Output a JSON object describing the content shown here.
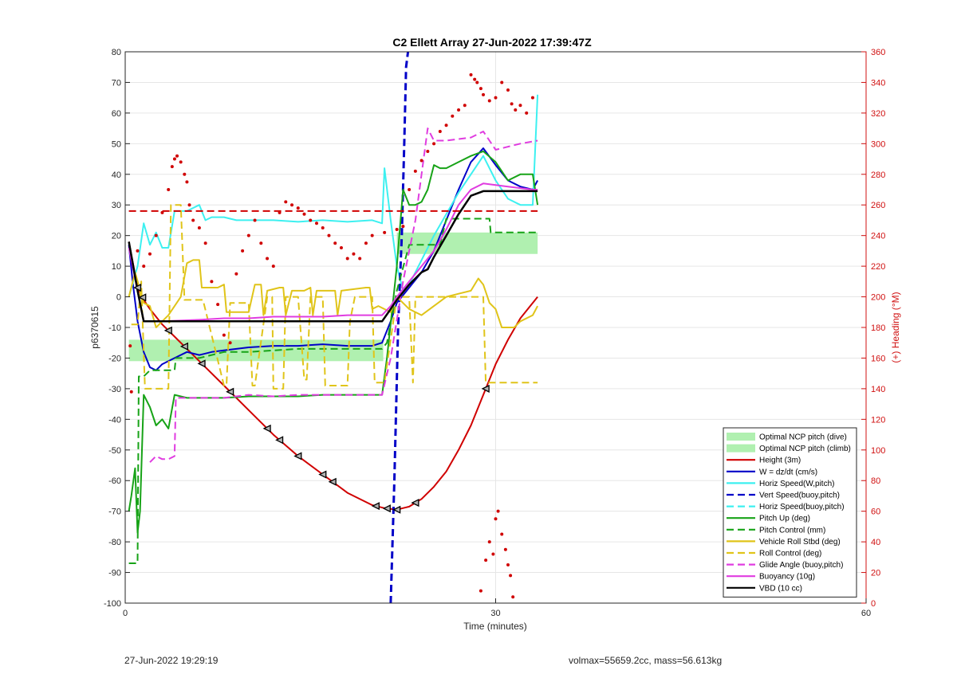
{
  "footer": {
    "left_text": "27-Jun-2022 19:29:19",
    "right_text": "volmax=55659.2cc, mass=56.613kg"
  },
  "colors": {
    "red": "#d00000",
    "blue": "#0000c8",
    "cyan": "#3df0f0",
    "green": "#17a317",
    "yellow": "#e0c419",
    "magenta": "#e03ce0",
    "black": "#000000",
    "light_green": "#b0f0b0",
    "right_axis": "#d01010"
  },
  "chart_data": {
    "type": "line",
    "title": "C2 Ellett Array 27-Jun-2022 17:39:47Z",
    "xlabel": "Time (minutes)",
    "ylabel": "p6370615",
    "ylabel_right": "(+) Heading (°M)",
    "xlim": [
      0,
      60
    ],
    "ylim": [
      -100,
      80
    ],
    "ylim_right": [
      0,
      360
    ],
    "xticks": [
      0,
      30,
      60
    ],
    "yticks": [
      -100,
      -90,
      -80,
      -70,
      -60,
      -50,
      -40,
      -30,
      -20,
      -10,
      0,
      10,
      20,
      30,
      40,
      50,
      60,
      70,
      80
    ],
    "yticks_right": [
      0,
      20,
      40,
      60,
      80,
      100,
      120,
      140,
      160,
      180,
      200,
      220,
      240,
      260,
      280,
      300,
      320,
      340,
      360
    ],
    "grid": true,
    "grid_x": [
      30
    ],
    "legend_position": "bottom-right",
    "legend": [
      {
        "label": "Optimal NCP pitch (dive)",
        "style": "patch",
        "color": "#b0f0b0"
      },
      {
        "label": "Optimal NCP pitch (climb)",
        "style": "patch",
        "color": "#b0f0b0"
      },
      {
        "label": "Height (3m)",
        "style": "solid",
        "color": "#d00000"
      },
      {
        "label": "W = dz/dt (cm/s)",
        "style": "solid",
        "color": "#0000c8"
      },
      {
        "label": "Horiz Speed(W,pitch)",
        "style": "solid",
        "color": "#3df0f0"
      },
      {
        "label": "Vert Speed(buoy,pitch)",
        "style": "dashed",
        "color": "#0000c8"
      },
      {
        "label": "Horiz Speed(buoy,pitch)",
        "style": "dashed",
        "color": "#3df0f0"
      },
      {
        "label": "Pitch Up (deg)",
        "style": "solid",
        "color": "#17a317"
      },
      {
        "label": "Pitch Control (mm)",
        "style": "dashed",
        "color": "#17a317"
      },
      {
        "label": "Vehicle Roll Stbd (deg)",
        "style": "solid",
        "color": "#e0c419"
      },
      {
        "label": "Roll Control (deg)",
        "style": "dashed",
        "color": "#e0c419"
      },
      {
        "label": "Glide Angle (buoy,pitch)",
        "style": "dashed",
        "color": "#e03ce0"
      },
      {
        "label": "Buoyancy (10g)",
        "style": "solid",
        "color": "#e03ce0"
      },
      {
        "label": "VBD (10 cc)",
        "style": "solid",
        "color": "#000000"
      }
    ],
    "patches": [
      {
        "name": "Optimal NCP pitch (dive)",
        "x": [
          0.3,
          20.9
        ],
        "y": [
          -21,
          -14
        ],
        "color": "#b0f0b0"
      },
      {
        "name": "Optimal NCP pitch (climb)",
        "x": [
          22.0,
          33.4
        ],
        "y": [
          14,
          21
        ],
        "color": "#b0f0b0"
      }
    ],
    "series": [
      {
        "name": "Height (3m)",
        "axis": "left",
        "style": "solid",
        "color": "#d00000",
        "width": 2,
        "x": [
          0.3,
          1.0,
          1.5,
          2.0,
          3.0,
          4.0,
          6.0,
          8.0,
          10.0,
          12.0,
          14.0,
          16.0,
          18.0,
          20.0,
          21.0,
          22.0,
          23.0,
          24.0,
          25.0,
          26.0,
          27.0,
          28.0,
          29.0,
          30.0,
          31.0,
          32.0,
          33.0,
          33.4
        ],
        "y": [
          18,
          3,
          -1,
          -4,
          -9,
          -13,
          -21,
          -29,
          -37,
          -45,
          -52,
          -58,
          -64,
          -68,
          -69,
          -69.5,
          -68.5,
          -66,
          -62,
          -57,
          -50,
          -42,
          -32,
          -22,
          -14,
          -7,
          -2,
          0
        ]
      },
      {
        "name": "W = dz/dt (cm/s)",
        "axis": "left",
        "style": "solid",
        "color": "#0000c8",
        "width": 2,
        "x": [
          0.3,
          0.6,
          1.0,
          1.5,
          2.0,
          2.5,
          3.0,
          4.0,
          5.0,
          6.0,
          7.0,
          8.0,
          9.0,
          10.0,
          12.0,
          14.0,
          16.0,
          18.0,
          20.0,
          20.8,
          21.5,
          22.0,
          23.0,
          24.0,
          25.0,
          26.0,
          27.0,
          28.0,
          29.0,
          30.0,
          31.0,
          32.0,
          33.0,
          33.4
        ],
        "y": [
          17,
          5,
          -8,
          -18,
          -23,
          -24,
          -22,
          -20,
          -18,
          -19,
          -18,
          -17.5,
          -17,
          -16.5,
          -16,
          -16,
          -15.5,
          -16,
          -16,
          -15,
          -8,
          -2,
          3,
          8,
          15,
          25,
          35,
          44,
          48.5,
          43,
          38,
          36,
          35,
          38
        ]
      },
      {
        "name": "Horiz Speed(W,pitch)",
        "axis": "left",
        "style": "solid",
        "color": "#3df0f0",
        "width": 2,
        "x": [
          0.3,
          1.0,
          1.5,
          2.0,
          2.5,
          3.0,
          3.5,
          4.0,
          5.0,
          6.0,
          6.5,
          7.0,
          8.0,
          9.0,
          10.0,
          12.0,
          14.0,
          16.0,
          18.0,
          20.0,
          20.8,
          21.0,
          21.5,
          22.0,
          22.5,
          23.0,
          24.0,
          25.0,
          26.0,
          27.0,
          28.0,
          29.0,
          30.0,
          31.0,
          32.0,
          33.0,
          33.4
        ],
        "y": [
          0,
          10,
          24,
          17,
          21,
          16,
          16,
          28,
          28,
          30,
          25,
          26,
          26,
          25,
          25,
          25,
          24.5,
          25,
          24.5,
          25,
          24,
          42,
          25,
          10,
          2,
          4,
          12,
          20,
          27,
          34,
          40,
          46,
          38,
          32,
          30,
          30,
          66
        ]
      },
      {
        "name": "Vert Speed(buoy,pitch)",
        "axis": "left",
        "style": "dashed",
        "color": "#0000c8",
        "width": 3,
        "x": [
          21.5,
          21.8,
          22.1,
          22.4,
          22.6,
          22.75,
          22.9
        ],
        "y": [
          -100,
          -60,
          -10,
          20,
          50,
          75,
          80
        ]
      },
      {
        "name": "Pitch Up (deg)",
        "axis": "left",
        "style": "solid",
        "color": "#17a317",
        "width": 2,
        "x": [
          0.3,
          0.5,
          0.8,
          1.0,
          1.2,
          1.5,
          2.0,
          2.5,
          3.0,
          3.5,
          4.0,
          5.0,
          6.0,
          8.0,
          10.0,
          12.0,
          14.0,
          16.0,
          18.0,
          20.0,
          20.8,
          21.2,
          22.0,
          22.5,
          23.0,
          23.5,
          24.0,
          24.5,
          25.0,
          25.5,
          26.0,
          27.0,
          28.0,
          29.0,
          30.0,
          31.0,
          32.0,
          33.0,
          33.4
        ],
        "y": [
          -70,
          -65,
          -56,
          -77,
          -70,
          -32,
          -36,
          -42,
          -40,
          -43,
          -32,
          -33,
          -33,
          -33,
          -32.5,
          -32.5,
          -32.5,
          -32,
          -32,
          -32,
          -32,
          -20,
          10,
          35,
          30,
          30,
          31,
          35,
          43,
          42,
          42,
          44,
          46,
          47.5,
          44,
          38,
          40,
          40,
          30
        ]
      },
      {
        "name": "Pitch Control (mm)",
        "axis": "left",
        "style": "dashed",
        "color": "#17a317",
        "width": 2,
        "x": [
          0.3,
          1.0,
          1.1,
          1.5,
          2.0,
          4.0,
          4.1,
          6.0,
          8.0,
          10.0,
          12.0,
          14.0,
          16.0,
          18.0,
          20.0,
          20.8,
          21.2,
          22.0,
          23.0,
          24.5,
          25.5,
          26.0,
          27.5,
          29.5,
          29.6,
          33.4
        ],
        "y": [
          -87,
          -87,
          -26,
          -26,
          -24,
          -24,
          -20,
          -20,
          -18,
          -18,
          -17.5,
          -17,
          -17,
          -17,
          -17,
          -17,
          -15,
          2,
          17,
          17,
          17,
          25.5,
          25.5,
          25.5,
          21,
          21
        ]
      },
      {
        "name": "Vehicle Roll Stbd (deg)",
        "axis": "left",
        "style": "solid",
        "color": "#e0c419",
        "width": 2,
        "x": [
          0.3,
          0.8,
          1.5,
          2.0,
          2.5,
          3.0,
          3.5,
          4.5,
          5.0,
          5.5,
          6.0,
          6.2,
          7.5,
          8.0,
          8.2,
          8.5,
          9.5,
          10.0,
          10.5,
          11.0,
          11.2,
          11.5,
          12.5,
          12.8,
          13.0,
          13.5,
          14.5,
          15.0,
          15.2,
          15.5,
          17.0,
          17.2,
          17.5,
          19.5,
          19.8,
          20.0,
          20.5,
          21.5,
          22.0,
          23.0,
          24.0,
          25.0,
          26.0,
          27.0,
          28.0,
          28.6,
          29.0,
          29.5,
          30.0,
          30.5,
          31.5,
          32.0,
          33.0,
          33.4
        ],
        "y": [
          0,
          8,
          -2,
          -3,
          -10,
          -8,
          -6,
          0,
          11,
          12,
          12,
          3,
          3,
          4,
          -5,
          -5,
          -5,
          -5,
          4,
          4,
          -6,
          2,
          3,
          3,
          -6,
          2,
          2,
          3,
          -6,
          2,
          2,
          -6,
          2,
          3,
          3,
          -4,
          -3,
          -5,
          0,
          -4,
          -6,
          -3,
          0,
          1,
          2,
          6,
          4,
          -2,
          -4,
          -10,
          -10,
          -8,
          -6,
          -3
        ]
      },
      {
        "name": "Roll Control (deg)",
        "axis": "left",
        "style": "dashed",
        "color": "#e0c419",
        "width": 2,
        "x": [
          0.5,
          1.0,
          1.3,
          1.6,
          3.5,
          3.7,
          4.5,
          4.8,
          6.0,
          6.2,
          6.3,
          8.0,
          8.2,
          8.5,
          9.0,
          9.5,
          10.0,
          10.3,
          10.5,
          11.5,
          11.7,
          11.9,
          12.0,
          12.8,
          13.0,
          13.2,
          14.0,
          14.5,
          14.7,
          15.0,
          16.0,
          16.2,
          16.5,
          18.0,
          18.2,
          18.6,
          20.0,
          20.2,
          21.0,
          22.0,
          23.0,
          23.3,
          23.5,
          24.5,
          25.0,
          26.0,
          27.5,
          28.0,
          29.0,
          29.2,
          29.5,
          30.0,
          33.4
        ],
        "y": [
          -9,
          -9,
          5,
          -30,
          -30,
          30,
          30,
          -1,
          -1,
          -1,
          -1,
          -29,
          -29,
          -2,
          -2,
          -2,
          -2,
          -29,
          -29,
          0,
          0,
          0,
          -30,
          -30,
          0,
          0,
          0,
          -27,
          -27,
          0,
          0,
          -29,
          -29,
          -29,
          -8,
          0,
          0,
          -28,
          -28,
          0,
          0,
          -28,
          0,
          0,
          0,
          0,
          0,
          0,
          0,
          -28,
          -28,
          -28,
          -28
        ]
      },
      {
        "name": "Glide Angle (buoy,pitch)",
        "axis": "left",
        "style": "dashed",
        "color": "#e03ce0",
        "width": 2,
        "x": [
          2.0,
          2.5,
          3.0,
          3.5,
          4.0,
          4.1,
          5.0,
          6.0,
          8.0,
          10.0,
          12.0,
          14.0,
          16.0,
          18.0,
          20.0,
          20.8,
          21.5,
          22.5,
          23.5,
          24.0,
          24.5,
          25.0,
          26.0,
          28.0,
          29.0,
          30.0,
          32.0,
          33.4
        ],
        "y": [
          -54,
          -52,
          -53,
          -53,
          -52,
          -33,
          -33,
          -33,
          -33,
          -32,
          -32.5,
          -32,
          -32,
          -32,
          -32,
          -32,
          -20,
          5,
          25,
          40,
          55,
          51,
          51,
          52,
          54,
          48,
          50,
          51
        ]
      },
      {
        "name": "Buoyancy (10g)",
        "axis": "left",
        "style": "solid",
        "color": "#e03ce0",
        "width": 2,
        "x": [
          0.3,
          1.0,
          1.5,
          3.0,
          6.0,
          8.0,
          10.0,
          12.0,
          14.0,
          16.0,
          18.0,
          20.0,
          20.8,
          21.5,
          22.0,
          23.0,
          24.0,
          25.0,
          26.0,
          27.0,
          28.0,
          29.0,
          31.0,
          33.0,
          33.4
        ],
        "y": [
          16,
          2,
          -8,
          -8,
          -7.5,
          -7,
          -7,
          -6.5,
          -6.5,
          -6.5,
          -6,
          -6,
          -6,
          -3,
          0,
          5,
          10,
          15,
          22,
          30,
          35,
          37,
          36,
          35,
          35
        ]
      },
      {
        "name": "VBD (10 cc)",
        "axis": "left",
        "style": "solid",
        "color": "#000000",
        "width": 2.5,
        "x": [
          0.3,
          1.0,
          1.5,
          4.0,
          8.0,
          12.0,
          16.0,
          20.0,
          20.8,
          21.5,
          22.0,
          23.0,
          24.0,
          24.5,
          25.0,
          26.0,
          27.0,
          28.0,
          29.0,
          31.0,
          33.0,
          33.4
        ],
        "y": [
          18,
          2,
          -8,
          -8,
          -8,
          -8,
          -8,
          -8,
          -8,
          -4,
          -1,
          4,
          8,
          9,
          13,
          20,
          27,
          33,
          34.5,
          34.5,
          34.5,
          34.5
        ]
      },
      {
        "name": "Heading reference",
        "axis": "right",
        "style": "dashed",
        "color": "#d00000",
        "width": 2,
        "x": [
          0.3,
          33.4
        ],
        "y": [
          256,
          256
        ]
      },
      {
        "name": "Heading",
        "axis": "right",
        "style": "dots",
        "color": "#d00000",
        "x": [
          0.4,
          0.5,
          1.0,
          1.5,
          2.0,
          2.5,
          3.0,
          3.5,
          3.8,
          4.0,
          4.2,
          4.5,
          4.8,
          5.0,
          5.2,
          5.5,
          6.0,
          6.5,
          7.0,
          7.5,
          8.0,
          8.5,
          9.0,
          9.5,
          10.0,
          10.5,
          11.0,
          11.5,
          12.0,
          12.5,
          13.0,
          13.5,
          14.0,
          14.5,
          15.0,
          15.5,
          16.0,
          16.5,
          17.0,
          17.5,
          18.0,
          18.5,
          19.0,
          19.5,
          20.0,
          21.0,
          22.0,
          22.5,
          23.0,
          23.5,
          24.0,
          24.5,
          25.0,
          25.5,
          26.0,
          26.5,
          27.0,
          27.5,
          28.0,
          28.3,
          28.5,
          28.8,
          29.0,
          29.5,
          30.0,
          30.5,
          31.0,
          31.3,
          31.6,
          32.0,
          32.5,
          33.0,
          28.8,
          29.2,
          29.5,
          29.8,
          30.0,
          30.2,
          30.5,
          30.8,
          31.0,
          31.2,
          31.4
        ],
        "y": [
          168,
          138,
          230,
          220,
          228,
          240,
          255,
          270,
          285,
          290,
          292,
          288,
          280,
          275,
          260,
          250,
          245,
          235,
          210,
          195,
          175,
          170,
          215,
          230,
          240,
          250,
          235,
          225,
          220,
          255,
          262,
          260,
          258,
          254,
          250,
          248,
          245,
          240,
          235,
          232,
          225,
          228,
          225,
          235,
          240,
          242,
          244,
          246,
          270,
          282,
          289,
          295,
          300,
          308,
          312,
          318,
          322,
          325,
          345,
          342,
          340,
          336,
          332,
          328,
          330,
          340,
          335,
          326,
          322,
          325,
          320,
          330,
          8,
          28,
          40,
          32,
          55,
          60,
          45,
          35,
          25,
          18,
          4
        ]
      }
    ],
    "triangle_markers": {
      "series": "Height (3m)",
      "x": [
        1.0,
        1.4,
        3.5,
        4.8,
        6.2,
        8.5,
        11.5,
        12.5,
        14.0,
        16.0,
        16.8,
        20.3,
        21.2,
        22.0,
        23.5,
        29.2
      ]
    }
  }
}
